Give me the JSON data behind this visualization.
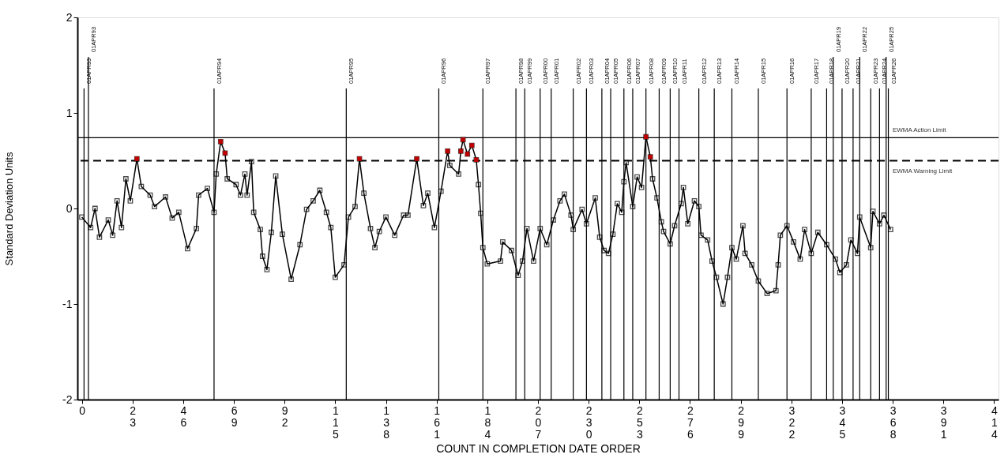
{
  "chart_data": {
    "type": "line",
    "xlabel": "COUNT IN COMPLETION DATE ORDER",
    "ylabel": "Standard Deviation Units",
    "xlim": [
      -2,
      416
    ],
    "ylim": [
      -2,
      2
    ],
    "xticks": [
      0,
      23,
      46,
      69,
      92,
      115,
      138,
      161,
      184,
      207,
      230,
      253,
      276,
      299,
      322,
      345,
      368,
      391,
      414
    ],
    "yticks": [
      -2,
      -1,
      0,
      1,
      2
    ],
    "grid": false,
    "marker": "square",
    "line_style": "solid",
    "series": [
      {
        "color": "#000000",
        "x": [
          0,
          4,
          6,
          8,
          12,
          14,
          16,
          18,
          20,
          22,
          25,
          27,
          31,
          33,
          38,
          41,
          44,
          48,
          52,
          53,
          57,
          60,
          61,
          63,
          65,
          66,
          70,
          72,
          74,
          75,
          77,
          78,
          81,
          82,
          84,
          86,
          88,
          91,
          95,
          99,
          102,
          105,
          108,
          111,
          113,
          115,
          119,
          121,
          124,
          126,
          128,
          131,
          133,
          135,
          138,
          142,
          146,
          148,
          152,
          155,
          157,
          160,
          163,
          166,
          167,
          171,
          172,
          173,
          175,
          177,
          179,
          180,
          181,
          182,
          184,
          190,
          191,
          195,
          198,
          200,
          202,
          205,
          208,
          211,
          214,
          217,
          219,
          222,
          223,
          227,
          229,
          233,
          235,
          237,
          239,
          241,
          243,
          245,
          246,
          247,
          250,
          252,
          254,
          256,
          258,
          259,
          261,
          263,
          264,
          267,
          269,
          272,
          273,
          275,
          278,
          280,
          281,
          284,
          286,
          288,
          291,
          293,
          295,
          297,
          300,
          301,
          304,
          307,
          311,
          315,
          316,
          317,
          320,
          323,
          326,
          328,
          331,
          334,
          338,
          342,
          344,
          347,
          349,
          352,
          353,
          358,
          359,
          362,
          364,
          367
        ],
        "values": [
          -0.09,
          -0.2,
          0.0,
          -0.3,
          -0.12,
          -0.28,
          0.08,
          -0.2,
          0.31,
          0.08,
          0.52,
          0.23,
          0.14,
          0.02,
          0.12,
          -0.1,
          -0.04,
          -0.42,
          -0.21,
          0.14,
          0.21,
          -0.04,
          0.36,
          0.7,
          0.58,
          0.31,
          0.25,
          0.14,
          0.36,
          0.14,
          0.49,
          -0.04,
          -0.22,
          -0.5,
          -0.64,
          -0.25,
          0.34,
          -0.27,
          -0.74,
          -0.38,
          -0.01,
          0.08,
          0.19,
          -0.04,
          -0.2,
          -0.72,
          -0.59,
          -0.09,
          0.02,
          0.52,
          0.16,
          -0.21,
          -0.41,
          -0.24,
          -0.09,
          -0.28,
          -0.07,
          -0.07,
          0.52,
          0.03,
          0.16,
          -0.2,
          0.18,
          0.6,
          0.45,
          0.36,
          0.6,
          0.72,
          0.57,
          0.66,
          0.51,
          0.25,
          -0.05,
          -0.41,
          -0.58,
          -0.55,
          -0.35,
          -0.44,
          -0.7,
          -0.55,
          -0.21,
          -0.55,
          -0.21,
          -0.38,
          -0.12,
          0.08,
          0.15,
          -0.07,
          -0.22,
          -0.01,
          -0.16,
          0.11,
          -0.3,
          -0.44,
          -0.47,
          -0.27,
          0.05,
          -0.04,
          0.28,
          0.48,
          0.02,
          0.33,
          0.22,
          0.75,
          0.54,
          0.31,
          0.11,
          -0.14,
          -0.24,
          -0.37,
          -0.18,
          0.05,
          0.22,
          -0.16,
          0.08,
          0.02,
          -0.28,
          -0.33,
          -0.55,
          -0.72,
          -1.0,
          -0.72,
          -0.41,
          -0.53,
          -0.18,
          -0.47,
          -0.59,
          -0.76,
          -0.89,
          -0.86,
          -0.59,
          -0.28,
          -0.18,
          -0.35,
          -0.53,
          -0.22,
          -0.47,
          -0.25,
          -0.38,
          -0.53,
          -0.67,
          -0.59,
          -0.33,
          -0.47,
          -0.09,
          -0.41,
          -0.03,
          -0.16,
          -0.07,
          -0.22
        ]
      },
      {
        "type": "scatter",
        "color": "#c00000",
        "x": [
          25,
          63,
          65,
          126,
          152,
          166,
          172,
          173,
          175,
          177,
          179,
          256,
          258
        ],
        "values": [
          0.52,
          0.7,
          0.58,
          0.52,
          0.52,
          0.6,
          0.6,
          0.72,
          0.57,
          0.66,
          0.51,
          0.75,
          0.54
        ]
      }
    ],
    "ref_lines": [
      {
        "axis": "y",
        "value": 0.74,
        "label": "EWMA Action Limit",
        "line_style": "solid"
      },
      {
        "axis": "y",
        "value": 0.5,
        "label": "EWMA Warning Limit",
        "line_style": "dashed"
      },
      {
        "axis": "x",
        "value": 1,
        "label": "01APR93"
      },
      {
        "axis": "x",
        "value": 3,
        "label": "01APR93"
      },
      {
        "axis": "x",
        "value": 60,
        "label": "01APR94"
      },
      {
        "axis": "x",
        "value": 120,
        "label": "01APR95"
      },
      {
        "axis": "x",
        "value": 162,
        "label": "01APR96"
      },
      {
        "axis": "x",
        "value": 182,
        "label": "01APR97"
      },
      {
        "axis": "x",
        "value": 197,
        "label": "01APR98"
      },
      {
        "axis": "x",
        "value": 201,
        "label": "01APR99"
      },
      {
        "axis": "x",
        "value": 208,
        "label": "01APR00"
      },
      {
        "axis": "x",
        "value": 213,
        "label": "01APR01"
      },
      {
        "axis": "x",
        "value": 223,
        "label": "01APR02"
      },
      {
        "axis": "x",
        "value": 229,
        "label": "01APR03"
      },
      {
        "axis": "x",
        "value": 236,
        "label": "01APR04"
      },
      {
        "axis": "x",
        "value": 240,
        "label": "01APR05"
      },
      {
        "axis": "x",
        "value": 246,
        "label": "01APR06"
      },
      {
        "axis": "x",
        "value": 250,
        "label": "01APR07"
      },
      {
        "axis": "x",
        "value": 256,
        "label": "01APR08"
      },
      {
        "axis": "x",
        "value": 262,
        "label": "01APR09"
      },
      {
        "axis": "x",
        "value": 267,
        "label": "01APR10"
      },
      {
        "axis": "x",
        "value": 271,
        "label": "01APR11"
      },
      {
        "axis": "x",
        "value": 280,
        "label": "01APR12"
      },
      {
        "axis": "x",
        "value": 287,
        "label": "01APR13"
      },
      {
        "axis": "x",
        "value": 295,
        "label": "01APR14"
      },
      {
        "axis": "x",
        "value": 307,
        "label": "01APR15"
      },
      {
        "axis": "x",
        "value": 320,
        "label": "01APR16"
      },
      {
        "axis": "x",
        "value": 331,
        "label": "01APR17"
      },
      {
        "axis": "x",
        "value": 338,
        "label": "01APR18"
      },
      {
        "axis": "x",
        "value": 341,
        "label": "01APR19"
      },
      {
        "axis": "x",
        "value": 345,
        "label": "01APR20"
      },
      {
        "axis": "x",
        "value": 350,
        "label": "01APR21"
      },
      {
        "axis": "x",
        "value": 353,
        "label": "01APR22"
      },
      {
        "axis": "x",
        "value": 358,
        "label": "01APR23"
      },
      {
        "axis": "x",
        "value": 362,
        "label": "01APR24"
      },
      {
        "axis": "x",
        "value": 365,
        "label": "01APR25"
      },
      {
        "axis": "x",
        "value": 366,
        "label": "01APR26"
      }
    ]
  }
}
